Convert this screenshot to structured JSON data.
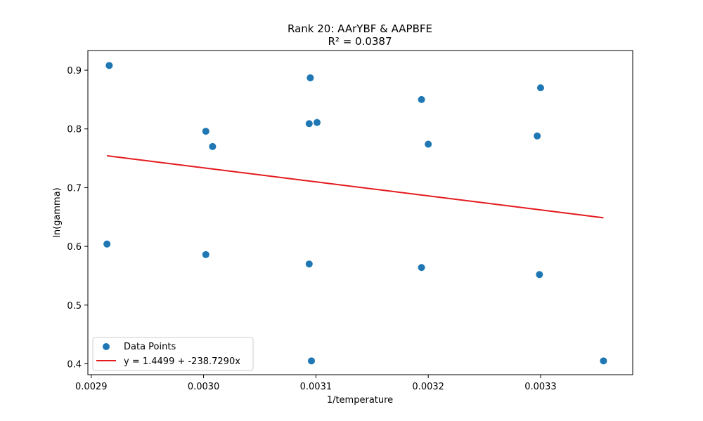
{
  "chart_data": {
    "type": "scatter",
    "title": "Rank 20: AArYBF & AAPBFE",
    "subtitle": "R² = 0.0387",
    "xlabel": "1/temperature",
    "ylabel": "ln(gamma)",
    "xlim": [
      0.002897,
      0.003382
    ],
    "ylim": [
      0.3815,
      0.9335
    ],
    "xticks": [
      0.0029,
      0.003,
      0.0031,
      0.0032,
      0.0033
    ],
    "xtick_labels": [
      "0.0029",
      "0.0030",
      "0.0031",
      "0.0032",
      "0.0033"
    ],
    "yticks": [
      0.4,
      0.5,
      0.6,
      0.7,
      0.8,
      0.9
    ],
    "ytick_labels": [
      "0.4",
      "0.5",
      "0.6",
      "0.7",
      "0.8",
      "0.9"
    ],
    "grid": false,
    "legend_position": "lower-left",
    "series": [
      {
        "name": "Data Points",
        "kind": "scatter",
        "color": "#1f77b4",
        "points": [
          [
            0.002916,
            0.908
          ],
          [
            0.002914,
            0.604
          ],
          [
            0.003002,
            0.796
          ],
          [
            0.003008,
            0.77
          ],
          [
            0.003002,
            0.586
          ],
          [
            0.003095,
            0.887
          ],
          [
            0.003094,
            0.809
          ],
          [
            0.003101,
            0.811
          ],
          [
            0.003094,
            0.57
          ],
          [
            0.003096,
            0.405
          ],
          [
            0.003194,
            0.85
          ],
          [
            0.0032,
            0.774
          ],
          [
            0.003194,
            0.564
          ],
          [
            0.0033,
            0.87
          ],
          [
            0.003297,
            0.788
          ],
          [
            0.003299,
            0.552
          ],
          [
            0.003356,
            0.405
          ]
        ]
      },
      {
        "name": "y = 1.4499 + -238.7290x",
        "kind": "line",
        "color": "#e41a1c",
        "intercept": 1.4499,
        "slope": -238.729,
        "x_range": [
          0.002914,
          0.003356
        ]
      }
    ]
  }
}
